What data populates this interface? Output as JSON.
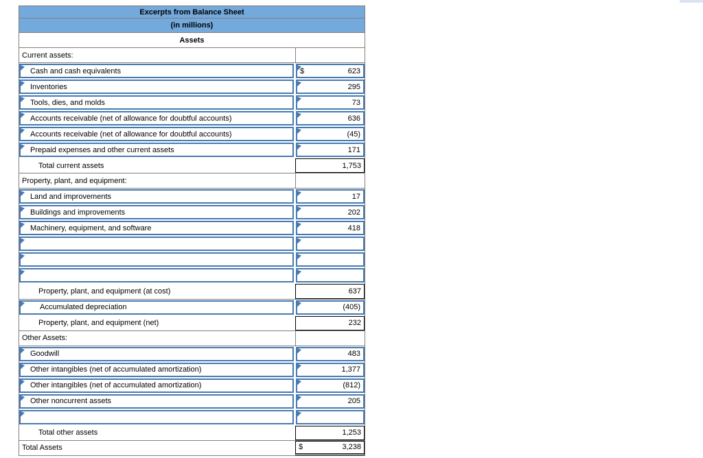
{
  "page": {
    "top_right_accent_color": "#dbe5f2",
    "background_color": "#ffffff"
  },
  "table": {
    "title": "Excerpts from Balance Sheet",
    "subtitle": "(in millions)",
    "column_header": "Assets",
    "colors": {
      "header_bg": "#74a9dc",
      "editable_cell_border": "#4679b2",
      "grid_border": "#7f7f7f",
      "total_cell_border": "#000000"
    },
    "rows": [
      {
        "type": "section",
        "label": "Current assets:",
        "dollar": "",
        "value": "",
        "indent": 0
      },
      {
        "type": "input",
        "label": "Cash and cash equivalents",
        "dollar": "$",
        "value": "623",
        "indent": 1
      },
      {
        "type": "input",
        "label": "Inventories",
        "dollar": "",
        "value": "295",
        "indent": 1
      },
      {
        "type": "input",
        "label": "Tools, dies, and molds",
        "dollar": "",
        "value": "73",
        "indent": 1
      },
      {
        "type": "input",
        "label": "Accounts receivable (net of allowance for doubtful accounts)",
        "dollar": "",
        "value": "636",
        "indent": 1
      },
      {
        "type": "input",
        "label": "Accounts receivable (net of allowance for doubtful accounts)",
        "dollar": "",
        "value": "(45)",
        "indent": 1
      },
      {
        "type": "input",
        "label": "Prepaid expenses and other current assets",
        "dollar": "",
        "value": "171",
        "indent": 1
      },
      {
        "type": "total",
        "label": "Total current assets",
        "dollar": "",
        "value": "1,753",
        "indent": 2
      },
      {
        "type": "section",
        "label": "Property, plant, and equipment:",
        "dollar": "",
        "value": "",
        "indent": 0
      },
      {
        "type": "input",
        "label": "Land and improvements",
        "dollar": "",
        "value": "17",
        "indent": 1
      },
      {
        "type": "input",
        "label": "Buildings and improvements",
        "dollar": "",
        "value": "202",
        "indent": 1
      },
      {
        "type": "input",
        "label": "Machinery, equipment, and software",
        "dollar": "",
        "value": "418",
        "indent": 1
      },
      {
        "type": "input",
        "label": "",
        "dollar": "",
        "value": "",
        "indent": 1
      },
      {
        "type": "input",
        "label": "",
        "dollar": "",
        "value": "",
        "indent": 1
      },
      {
        "type": "input",
        "label": "",
        "dollar": "",
        "value": "",
        "indent": 1
      },
      {
        "type": "total",
        "label": "Property, plant, and equipment (at cost)",
        "dollar": "",
        "value": "637",
        "indent": 2
      },
      {
        "type": "input",
        "label": "Accumulated depreciation",
        "dollar": "",
        "value": "(405)",
        "indent": 2
      },
      {
        "type": "total",
        "label": "Property, plant, and equipment (net)",
        "dollar": "",
        "value": "232",
        "indent": 2
      },
      {
        "type": "section",
        "label": "Other Assets:",
        "dollar": "",
        "value": "",
        "indent": 0
      },
      {
        "type": "input",
        "label": "Goodwill",
        "dollar": "",
        "value": "483",
        "indent": 1
      },
      {
        "type": "input",
        "label": "Other intangibles (net of accumulated amortization)",
        "dollar": "",
        "value": "1,377",
        "indent": 1
      },
      {
        "type": "input",
        "label": "Other intangibles (net of accumulated amortization)",
        "dollar": "",
        "value": "(812)",
        "indent": 1
      },
      {
        "type": "input",
        "label": "Other noncurrent assets",
        "dollar": "",
        "value": "205",
        "indent": 1
      },
      {
        "type": "input",
        "label": "",
        "dollar": "",
        "value": "",
        "indent": 1
      },
      {
        "type": "total",
        "label": "Total other assets",
        "dollar": "",
        "value": "1,253",
        "indent": 2
      },
      {
        "type": "grand",
        "label": "Total Assets",
        "dollar": "$",
        "value": "3,238",
        "indent": 0
      }
    ]
  }
}
